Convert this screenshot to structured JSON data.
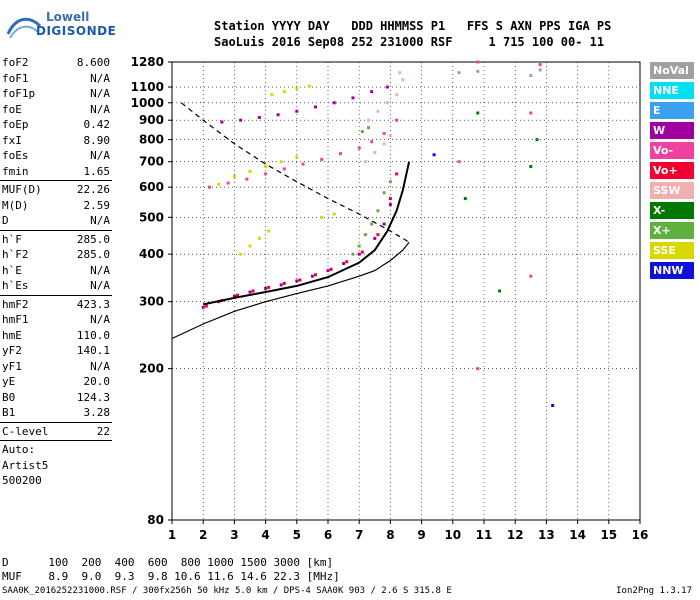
{
  "logo": {
    "line1": "Lowell",
    "line2": "DIGISONDE"
  },
  "header": {
    "line1": "Station YYYY DAY   DDD HHMMSS P1   FFS S AXN PPS IGA PS",
    "line2": "SaoLuis 2016 Sep08 252 231000 RSF     1 715 100 00- 11"
  },
  "params": {
    "group1": [
      {
        "label": "foF2",
        "value": "8.600"
      },
      {
        "label": "foF1",
        "value": "N/A"
      },
      {
        "label": "foF1p",
        "value": "N/A"
      },
      {
        "label": "foE",
        "value": "N/A"
      },
      {
        "label": "foEp",
        "value": "0.42"
      },
      {
        "label": "fxI",
        "value": "8.90"
      },
      {
        "label": "foEs",
        "value": "N/A"
      },
      {
        "label": "fmin",
        "value": "1.65"
      }
    ],
    "group2": [
      {
        "label": "MUF(D)",
        "value": "22.26"
      },
      {
        "label": "M(D)",
        "value": "2.59"
      },
      {
        "label": "D",
        "value": "N/A"
      }
    ],
    "group3": [
      {
        "label": "h`F",
        "value": "285.0"
      },
      {
        "label": "h`F2",
        "value": "285.0"
      },
      {
        "label": "h`E",
        "value": "N/A"
      },
      {
        "label": "h`Es",
        "value": "N/A"
      }
    ],
    "group4": [
      {
        "label": "hmF2",
        "value": "423.3"
      },
      {
        "label": "hmF1",
        "value": "N/A"
      },
      {
        "label": "hmE",
        "value": "110.0"
      },
      {
        "label": "yF2",
        "value": "140.1"
      },
      {
        "label": "yF1",
        "value": "N/A"
      },
      {
        "label": "yE",
        "value": "20.0"
      },
      {
        "label": "B0",
        "value": "124.3"
      },
      {
        "label": "B1",
        "value": "3.28"
      }
    ],
    "group5": [
      {
        "label": "C-level",
        "value": "22"
      }
    ],
    "auto_lines": [
      "Auto:",
      "Artist5",
      "500200"
    ]
  },
  "legend": [
    {
      "label": "NoVal",
      "color": "#a0a0a0"
    },
    {
      "label": "NNE",
      "color": "#00e0f0"
    },
    {
      "label": "E",
      "color": "#3aa0f0"
    },
    {
      "label": "W",
      "color": "#a000a0"
    },
    {
      "label": "Vo-",
      "color": "#f040a0"
    },
    {
      "label": "Vo+",
      "color": "#f00030"
    },
    {
      "label": "SSW",
      "color": "#f0b0b0"
    },
    {
      "label": "X-",
      "color": "#007800"
    },
    {
      "label": "X+",
      "color": "#60b040"
    },
    {
      "label": "SSE",
      "color": "#d8d800"
    },
    {
      "label": "NNW",
      "color": "#1010d8"
    }
  ],
  "chart_data": {
    "type": "scatter",
    "xlabel": "",
    "ylabel": "",
    "xlim": [
      1,
      16
    ],
    "ylim": [
      80,
      1280
    ],
    "x_ticks": [
      "1",
      "2",
      "3",
      "4",
      "5",
      "6",
      "7",
      "8",
      "9",
      "10",
      "11",
      "12",
      "13",
      "14",
      "15",
      "16"
    ],
    "y_ticks": [
      "1280",
      "1100",
      "1000",
      "900",
      "800",
      "700",
      "600",
      "500",
      "400",
      "300",
      "200",
      "80"
    ],
    "y_scale": "log",
    "series": [
      {
        "color": "#a000a0",
        "points": [
          [
            2.0,
            290
          ],
          [
            2.5,
            300
          ],
          [
            3.0,
            310
          ],
          [
            3.5,
            318
          ],
          [
            4.0,
            325
          ],
          [
            4.5,
            332
          ],
          [
            5.0,
            340
          ],
          [
            5.5,
            350
          ],
          [
            6.0,
            362
          ],
          [
            6.5,
            378
          ],
          [
            7.0,
            400
          ],
          [
            7.5,
            440
          ],
          [
            7.8,
            480
          ],
          [
            8.0,
            540
          ]
        ]
      },
      {
        "color": "#f00030",
        "points": [
          [
            2.1,
            292
          ],
          [
            2.6,
            302
          ],
          [
            3.1,
            312
          ],
          [
            3.6,
            320
          ],
          [
            4.1,
            327
          ],
          [
            4.6,
            335
          ],
          [
            5.1,
            342
          ],
          [
            5.6,
            353
          ],
          [
            6.1,
            365
          ],
          [
            6.6,
            382
          ],
          [
            7.1,
            405
          ],
          [
            7.6,
            450
          ],
          [
            8.0,
            560
          ],
          [
            8.2,
            650
          ]
        ]
      },
      {
        "color": "#f040a0",
        "points": [
          [
            2.2,
            600
          ],
          [
            2.8,
            615
          ],
          [
            3.4,
            630
          ],
          [
            4.0,
            650
          ],
          [
            4.6,
            670
          ],
          [
            5.2,
            690
          ],
          [
            5.8,
            710
          ],
          [
            6.4,
            735
          ],
          [
            7.0,
            760
          ],
          [
            7.4,
            790
          ],
          [
            7.8,
            830
          ],
          [
            8.2,
            900
          ]
        ]
      },
      {
        "color": "#a000a0",
        "points": [
          [
            2.6,
            890
          ],
          [
            3.2,
            900
          ],
          [
            3.8,
            915
          ],
          [
            4.4,
            930
          ],
          [
            5.0,
            950
          ],
          [
            5.6,
            975
          ],
          [
            6.2,
            1000
          ],
          [
            6.8,
            1030
          ],
          [
            7.4,
            1070
          ],
          [
            7.9,
            1100
          ]
        ]
      },
      {
        "color": "#f0b0b0",
        "points": [
          [
            7.2,
            700
          ],
          [
            7.5,
            740
          ],
          [
            7.8,
            780
          ],
          [
            8.0,
            820
          ],
          [
            7.3,
            900
          ],
          [
            7.6,
            950
          ],
          [
            7.9,
            1000
          ],
          [
            8.2,
            1050
          ],
          [
            8.4,
            1150
          ],
          [
            8.3,
            1200
          ]
        ]
      },
      {
        "color": "#d8d800",
        "points": [
          [
            2.5,
            610
          ],
          [
            3.0,
            640
          ],
          [
            3.5,
            660
          ],
          [
            4.0,
            680
          ],
          [
            4.5,
            700
          ],
          [
            5.0,
            720
          ],
          [
            4.2,
            1050
          ],
          [
            4.6,
            1070
          ],
          [
            5.0,
            1090
          ],
          [
            5.4,
            1105
          ],
          [
            3.2,
            400
          ],
          [
            3.5,
            420
          ],
          [
            3.8,
            440
          ],
          [
            4.1,
            460
          ],
          [
            5.8,
            500
          ],
          [
            6.2,
            510
          ]
        ]
      },
      {
        "color": "#60b040",
        "points": [
          [
            6.8,
            400
          ],
          [
            7.0,
            420
          ],
          [
            7.2,
            450
          ],
          [
            7.4,
            480
          ],
          [
            7.6,
            520
          ],
          [
            7.8,
            580
          ],
          [
            8.0,
            620
          ],
          [
            7.1,
            840
          ],
          [
            7.3,
            860
          ]
        ]
      },
      {
        "color": "#a0a0a0",
        "points": [
          [
            10.2,
            1200
          ],
          [
            10.8,
            1210
          ],
          [
            12.5,
            1180
          ],
          [
            12.8,
            1220
          ]
        ]
      },
      {
        "color": "#007800",
        "points": [
          [
            10.8,
            940
          ],
          [
            12.5,
            680
          ],
          [
            12.7,
            800
          ],
          [
            10.4,
            560
          ],
          [
            11.5,
            320
          ]
        ]
      },
      {
        "color": "#1010d8",
        "points": [
          [
            9.4,
            730
          ],
          [
            13.2,
            160
          ]
        ]
      },
      {
        "color": "#f040a0",
        "points": [
          [
            10.8,
            1280
          ],
          [
            12.8,
            1260
          ],
          [
            12.5,
            940
          ],
          [
            10.2,
            700
          ],
          [
            10.8,
            200
          ],
          [
            12.5,
            350
          ]
        ]
      }
    ],
    "curves": [
      {
        "name": "",
        "style": "solid",
        "points": [
          [
            1.0,
            240
          ],
          [
            2.0,
            262
          ],
          [
            3.0,
            283
          ],
          [
            4.0,
            300
          ],
          [
            5.0,
            315
          ],
          [
            6.0,
            330
          ],
          [
            7.0,
            350
          ],
          [
            7.5,
            362
          ],
          [
            8.0,
            385
          ],
          [
            8.4,
            410
          ],
          [
            8.6,
            430
          ]
        ]
      },
      {
        "name": "",
        "style": "solid-bold",
        "points": [
          [
            2.0,
            295
          ],
          [
            3.0,
            307
          ],
          [
            4.0,
            318
          ],
          [
            5.0,
            330
          ],
          [
            6.0,
            348
          ],
          [
            7.0,
            380
          ],
          [
            7.5,
            410
          ],
          [
            7.9,
            460
          ],
          [
            8.2,
            520
          ],
          [
            8.4,
            590
          ],
          [
            8.6,
            700
          ]
        ]
      },
      {
        "name": "",
        "style": "dashed",
        "points": [
          [
            1.3,
            1000
          ],
          [
            2.0,
            900
          ],
          [
            3.0,
            780
          ],
          [
            4.0,
            690
          ],
          [
            5.0,
            620
          ],
          [
            6.0,
            560
          ],
          [
            7.0,
            510
          ],
          [
            8.0,
            460
          ],
          [
            8.4,
            440
          ],
          [
            8.6,
            430
          ]
        ]
      }
    ]
  },
  "footer": {
    "row_d": "D      100  200  400  600  800 1000 1500 3000 [km]",
    "row_muf": "MUF    8.9  9.0  9.3  9.8 10.6 11.6 14.6 22.3 [MHz]",
    "file_line": "SAA0K_2016252231000.RSF / 300fx256h 50 kHz 5.0 km / DPS-4 SAA0K 903 / 2.6 S 315.8 E",
    "version": "Ion2Png 1.3.17"
  }
}
